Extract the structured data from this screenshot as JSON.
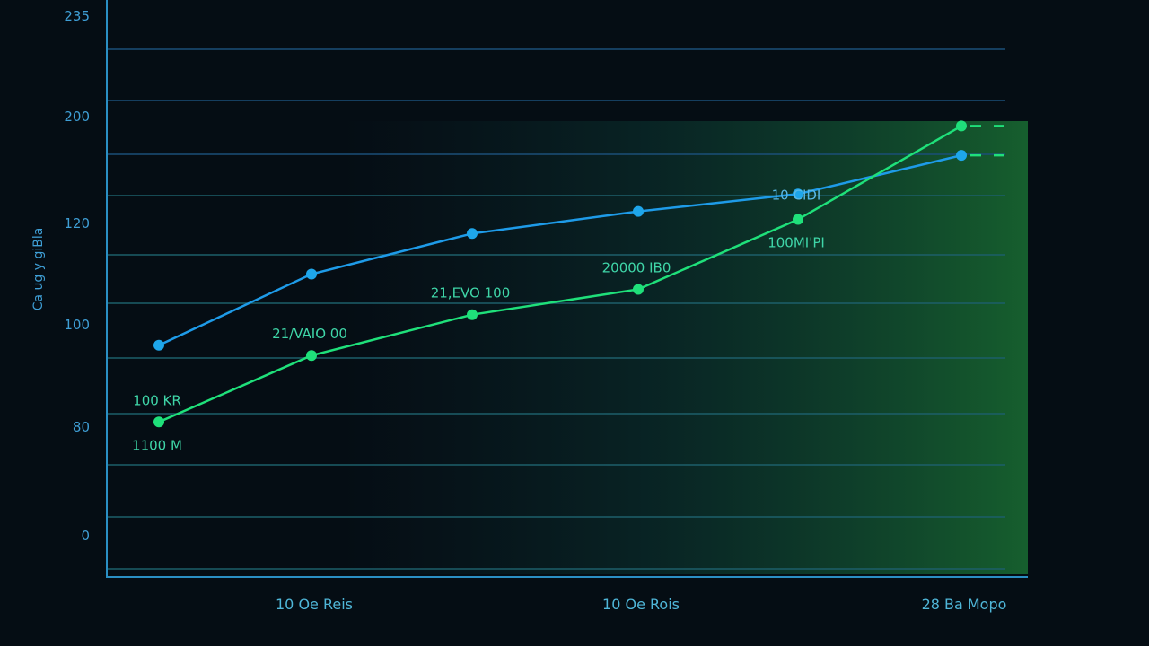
{
  "chart_data": {
    "type": "line",
    "title": "",
    "ylabel": "Ca ug y giBla",
    "xlabel": "",
    "y_tick_labels": [
      "235",
      "200",
      "120",
      "100",
      "80",
      "0"
    ],
    "x_tick_labels": [
      "10 Oe Reis",
      "10 Oe Rois",
      "28 Ba Mopo"
    ],
    "x_tick_positions": [
      1,
      3,
      5
    ],
    "x": [
      0,
      1,
      2,
      3,
      4,
      5
    ],
    "grid": true,
    "series": [
      {
        "color": "#1e9be8",
        "values": [
          96,
          110,
          118,
          129,
          142,
          171
        ]
      },
      {
        "color": "#1fe07a",
        "values": [
          81,
          94,
          102,
          107,
          123,
          193
        ]
      }
    ],
    "data_labels": [
      {
        "text": "100 KR",
        "series": 1,
        "index": 0,
        "pos": "above"
      },
      {
        "text": "1100 M",
        "series": 1,
        "index": 0,
        "pos": "below"
      },
      {
        "text": "21/VAIO 00",
        "series": 1,
        "index": 1,
        "pos": "above"
      },
      {
        "text": "21,EVO 100",
        "series": 1,
        "index": 2,
        "pos": "above"
      },
      {
        "text": "20000 IB0",
        "series": 1,
        "index": 3,
        "pos": "above"
      },
      {
        "text": "10 CIDI",
        "series": 0,
        "index": 4,
        "pos": "on"
      },
      {
        "text": "100MI'PI",
        "series": 1,
        "index": 4,
        "pos": "below"
      }
    ],
    "background": "#050d14",
    "highlight_color": "#1a7a3a"
  }
}
